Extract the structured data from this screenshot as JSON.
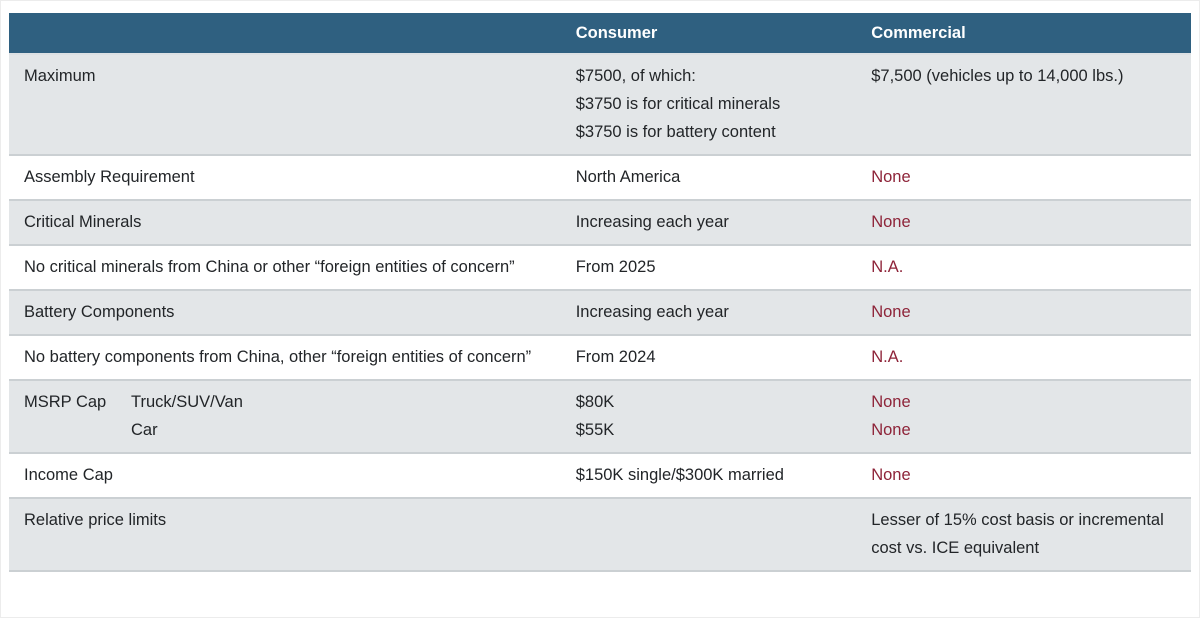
{
  "theme": {
    "header_bg": "#2F6080",
    "header_text": "#FFFFFF",
    "alt_row_bg": "#E3E6E8",
    "row_bg": "#FFFFFF",
    "border": "#CBD0D3",
    "text": "#222528",
    "accent_red": "#8E2439"
  },
  "table": {
    "headers": [
      "",
      "Consumer",
      "Commercial"
    ],
    "rows": [
      {
        "label": "Maximum",
        "shade": true,
        "consumer": [
          "$7500, of which:",
          "$3750 is for critical minerals",
          "$3750 is for battery content"
        ],
        "commercial": "$7,500 (vehicles up to 14,000 lbs.)",
        "commercial_red": false
      },
      {
        "label": "Assembly Requirement",
        "shade": false,
        "consumer": "North America",
        "commercial": "None",
        "commercial_red": true
      },
      {
        "label": "Critical Minerals",
        "shade": true,
        "consumer": "Increasing each year",
        "commercial": "None",
        "commercial_red": true
      },
      {
        "label": "No critical minerals from China or other “foreign entities of concern”",
        "shade": false,
        "consumer": "From 2025",
        "commercial": "N.A.",
        "commercial_red": true
      },
      {
        "label": "Battery Components",
        "shade": true,
        "consumer": "Increasing each year",
        "commercial": "None",
        "commercial_red": true
      },
      {
        "label": "No battery components from China, other “foreign entities of concern”",
        "shade": false,
        "consumer": "From 2024",
        "commercial": "N.A.",
        "commercial_red": true
      },
      {
        "label": "MSRP Cap",
        "sublabels": [
          "Truck/SUV/Van",
          "Car"
        ],
        "shade": true,
        "consumer": [
          "$80K",
          "$55K"
        ],
        "commercial": [
          "None",
          "None"
        ],
        "commercial_red": true
      },
      {
        "label": "Income Cap",
        "shade": false,
        "consumer": "$150K single/$300K married",
        "commercial": "None",
        "commercial_red": true
      },
      {
        "label": "Relative price limits",
        "shade": true,
        "consumer": "",
        "commercial": "Lesser of 15% cost basis or incremental cost vs. ICE equivalent",
        "commercial_red": false
      }
    ]
  }
}
